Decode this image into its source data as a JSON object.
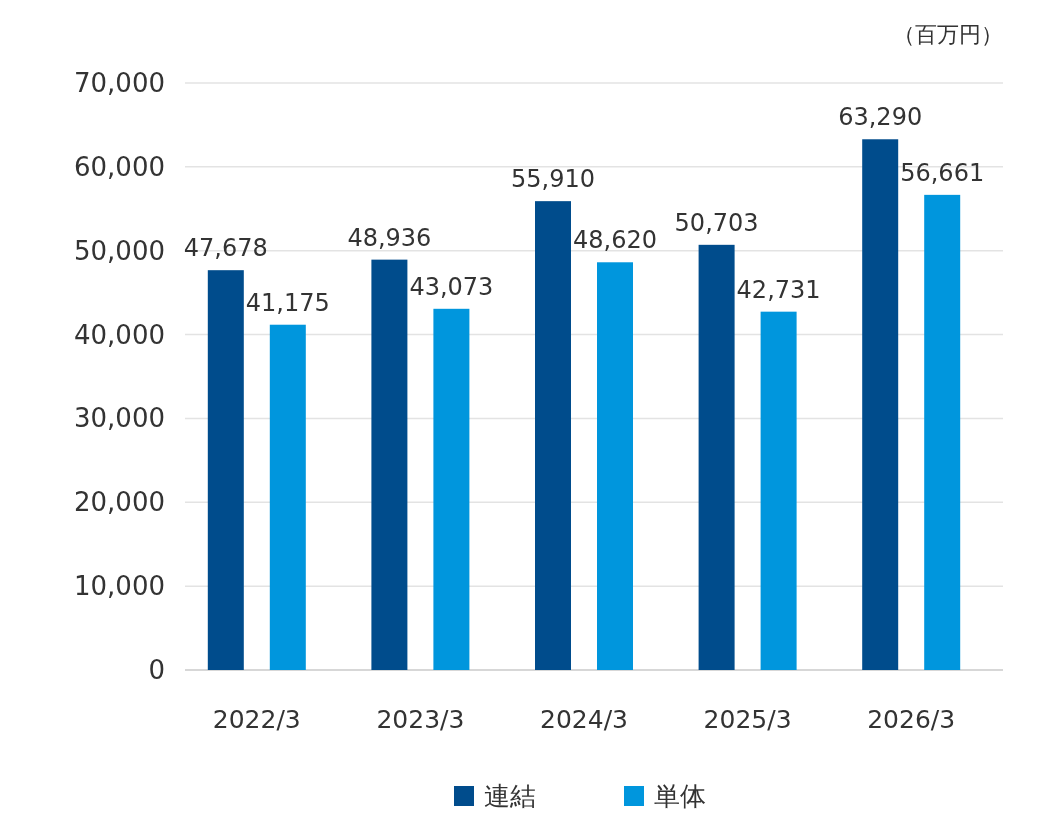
{
  "chart_data": {
    "type": "bar",
    "categories": [
      "2022/3",
      "2023/3",
      "2024/3",
      "2025/3",
      "2026/3"
    ],
    "series": [
      {
        "name": "連結",
        "color": "#004c8c",
        "values": [
          47678,
          48936,
          55910,
          50703,
          63290
        ],
        "value_labels": [
          "47,678",
          "48,936",
          "55,910",
          "50,703",
          "63,290"
        ]
      },
      {
        "name": "単体",
        "color": "#0096dd",
        "values": [
          41175,
          43073,
          48620,
          42731,
          56661
        ],
        "value_labels": [
          "41,175",
          "43,073",
          "48,620",
          "42,731",
          "56,661"
        ]
      }
    ],
    "ylim": [
      0,
      70000
    ],
    "yticks": [
      {
        "value": 0,
        "label": "0"
      },
      {
        "value": 10000,
        "label": "10,000"
      },
      {
        "value": 20000,
        "label": "20,000"
      },
      {
        "value": 30000,
        "label": "30,000"
      },
      {
        "value": 40000,
        "label": "40,000"
      },
      {
        "value": 50000,
        "label": "50,000"
      },
      {
        "value": 60000,
        "label": "60,000"
      },
      {
        "value": 70000,
        "label": "70,000"
      }
    ],
    "grid": "y",
    "legend": "bottom",
    "annotations": [
      "（百万円）"
    ]
  }
}
